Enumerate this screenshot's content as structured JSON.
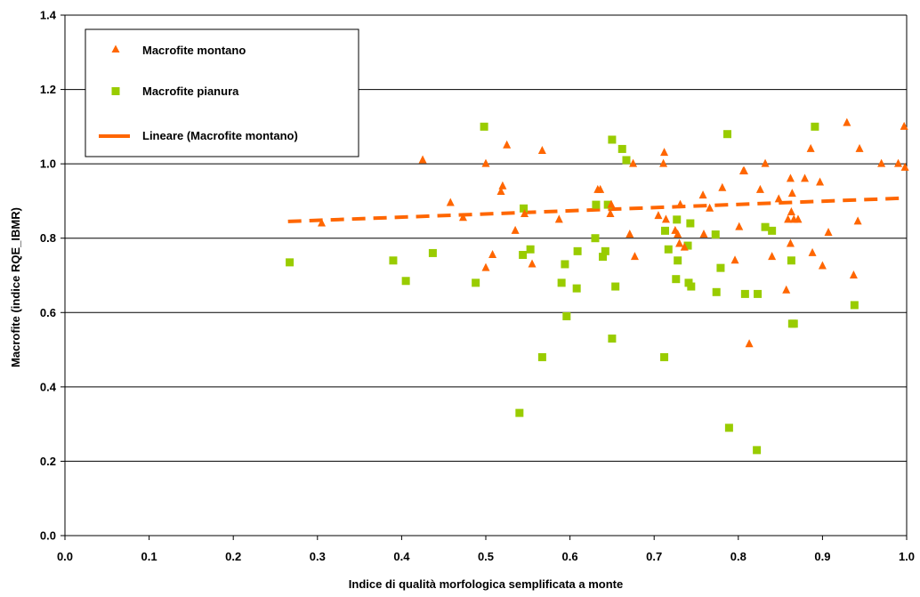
{
  "chart_data": {
    "type": "scatter",
    "title": "",
    "xlabel": "Indice di qualità morfologica semplificata a monte",
    "ylabel": "Macrofite  (indice RQE_IBMR)",
    "xlim": [
      0.0,
      1.0
    ],
    "ylim": [
      0.0,
      1.4
    ],
    "x_ticks": [
      "0.0",
      "0.1",
      "0.2",
      "0.3",
      "0.4",
      "0.5",
      "0.6",
      "0.7",
      "0.8",
      "0.9",
      "1.0"
    ],
    "y_ticks": [
      "0.0",
      "0.2",
      "0.4",
      "0.6",
      "0.8",
      "1.0",
      "1.2",
      "1.4"
    ],
    "grid": "horizontal",
    "legend_position": "top-left",
    "legend": {
      "montano": "Macrofite montano",
      "pianura": "Macrofite pianura",
      "trend": "Lineare (Macrofite montano)"
    },
    "colors": {
      "montano": "#ff6600",
      "pianura": "#99cc00",
      "trend": "#ff6600"
    },
    "series": [
      {
        "name": "Macrofite montano",
        "marker": "triangle",
        "x": [
          0.305,
          0.425,
          0.458,
          0.473,
          0.5,
          0.5,
          0.508,
          0.518,
          0.52,
          0.525,
          0.535,
          0.546,
          0.555,
          0.567,
          0.587,
          0.633,
          0.636,
          0.648,
          0.649,
          0.671,
          0.675,
          0.677,
          0.705,
          0.711,
          0.712,
          0.714,
          0.725,
          0.728,
          0.73,
          0.731,
          0.736,
          0.758,
          0.759,
          0.766,
          0.781,
          0.796,
          0.801,
          0.806,
          0.807,
          0.813,
          0.826,
          0.832,
          0.84,
          0.848,
          0.857,
          0.859,
          0.862,
          0.862,
          0.863,
          0.864,
          0.866,
          0.871,
          0.879,
          0.886,
          0.888,
          0.897,
          0.9,
          0.907,
          0.929,
          0.937,
          0.942,
          0.944,
          0.97,
          0.99,
          0.997,
          0.998
        ],
        "y": [
          0.84,
          1.01,
          0.895,
          0.855,
          0.72,
          1.0,
          0.755,
          0.925,
          0.94,
          1.05,
          0.82,
          0.865,
          0.73,
          1.035,
          0.85,
          0.93,
          0.93,
          0.865,
          0.89,
          0.81,
          1.0,
          0.75,
          0.86,
          1.0,
          1.03,
          0.85,
          0.82,
          0.81,
          0.785,
          0.89,
          0.775,
          0.915,
          0.81,
          0.88,
          0.935,
          0.74,
          0.83,
          0.98,
          0.98,
          0.515,
          0.93,
          1.0,
          0.75,
          0.905,
          0.66,
          0.85,
          0.96,
          0.785,
          0.87,
          0.92,
          0.85,
          0.85,
          0.96,
          1.04,
          0.76,
          0.95,
          0.725,
          0.815,
          1.11,
          0.7,
          0.845,
          1.04,
          1.0,
          1.0,
          1.1,
          0.99
        ]
      },
      {
        "name": "Macrofite pianura",
        "marker": "square",
        "x": [
          0.267,
          0.39,
          0.405,
          0.437,
          0.488,
          0.498,
          0.54,
          0.544,
          0.545,
          0.553,
          0.567,
          0.59,
          0.594,
          0.596,
          0.608,
          0.609,
          0.63,
          0.631,
          0.639,
          0.642,
          0.645,
          0.65,
          0.65,
          0.654,
          0.662,
          0.667,
          0.712,
          0.713,
          0.717,
          0.726,
          0.727,
          0.728,
          0.74,
          0.741,
          0.743,
          0.744,
          0.773,
          0.774,
          0.779,
          0.787,
          0.789,
          0.808,
          0.822,
          0.823,
          0.832,
          0.84,
          0.863,
          0.864,
          0.866,
          0.891,
          0.938
        ],
        "y": [
          0.735,
          0.74,
          0.685,
          0.76,
          0.68,
          1.1,
          0.33,
          0.755,
          0.88,
          0.77,
          0.48,
          0.68,
          0.73,
          0.59,
          0.665,
          0.765,
          0.8,
          0.89,
          0.75,
          0.765,
          0.89,
          1.065,
          0.53,
          0.67,
          1.04,
          1.01,
          0.48,
          0.82,
          0.77,
          0.69,
          0.85,
          0.74,
          0.78,
          0.68,
          0.84,
          0.67,
          0.81,
          0.655,
          0.72,
          1.08,
          0.29,
          0.65,
          0.23,
          0.65,
          0.83,
          0.82,
          0.74,
          0.57,
          0.57,
          1.1,
          0.62
        ]
      }
    ],
    "trendline": {
      "series": "Macrofite montano",
      "x": [
        0.265,
        1.0
      ],
      "y": [
        0.845,
        0.908
      ]
    }
  }
}
